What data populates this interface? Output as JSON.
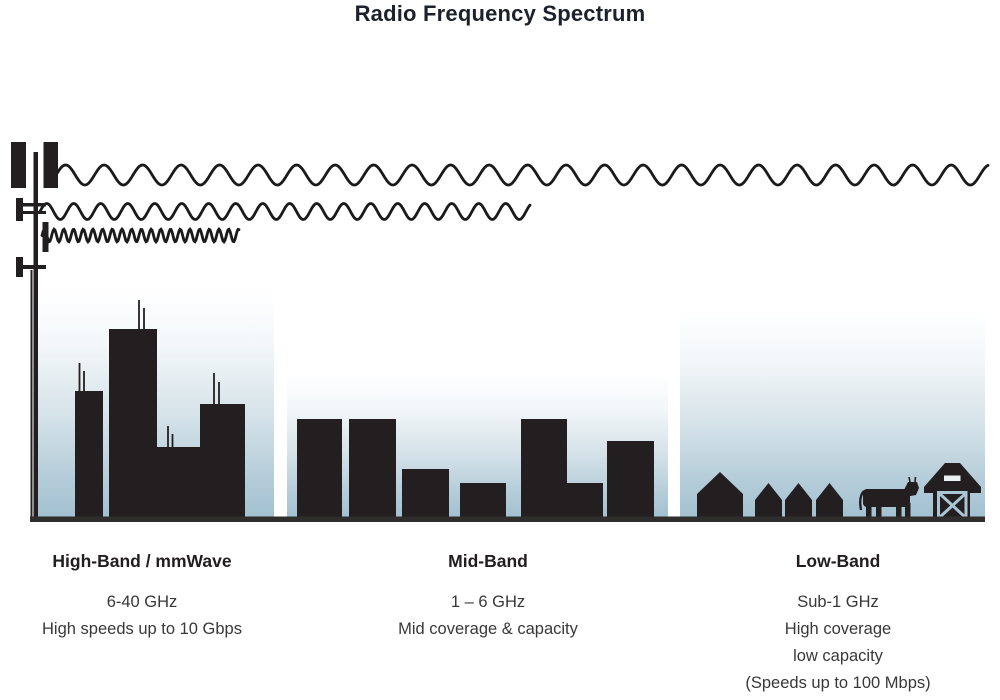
{
  "title": "Radio Frequency Spectrum",
  "bands": [
    {
      "id": "high",
      "heading": "High-Band / mmWave",
      "lines": [
        "6-40 GHz",
        "High speeds up to 10 Gbps"
      ]
    },
    {
      "id": "mid",
      "heading": "Mid-Band",
      "lines": [
        "1 – 6 GHz",
        "Mid coverage & capacity"
      ]
    },
    {
      "id": "low",
      "heading": "Low-Band",
      "lines": [
        "Sub-1 GHz",
        "High coverage",
        "low capacity",
        "(Speeds up to 100 Mbps)"
      ]
    }
  ],
  "icons": [
    "cell-tower-icon",
    "high-frequency-wave",
    "mid-frequency-wave",
    "low-frequency-wave",
    "city-skyline",
    "town-skyline",
    "house-icon",
    "cow-icon",
    "barn-icon"
  ],
  "colors": {
    "silhouette": "#231f20",
    "wave_stroke": "#1a1a1a",
    "sky_top": "#ffffff",
    "sky_bottom": "#a3c1d1",
    "ground": "#2f2e2d",
    "heading_text": "#221d1e",
    "body_text": "#383838",
    "title_text": "#1c222c",
    "barn_trim": "#a9c6d5"
  }
}
